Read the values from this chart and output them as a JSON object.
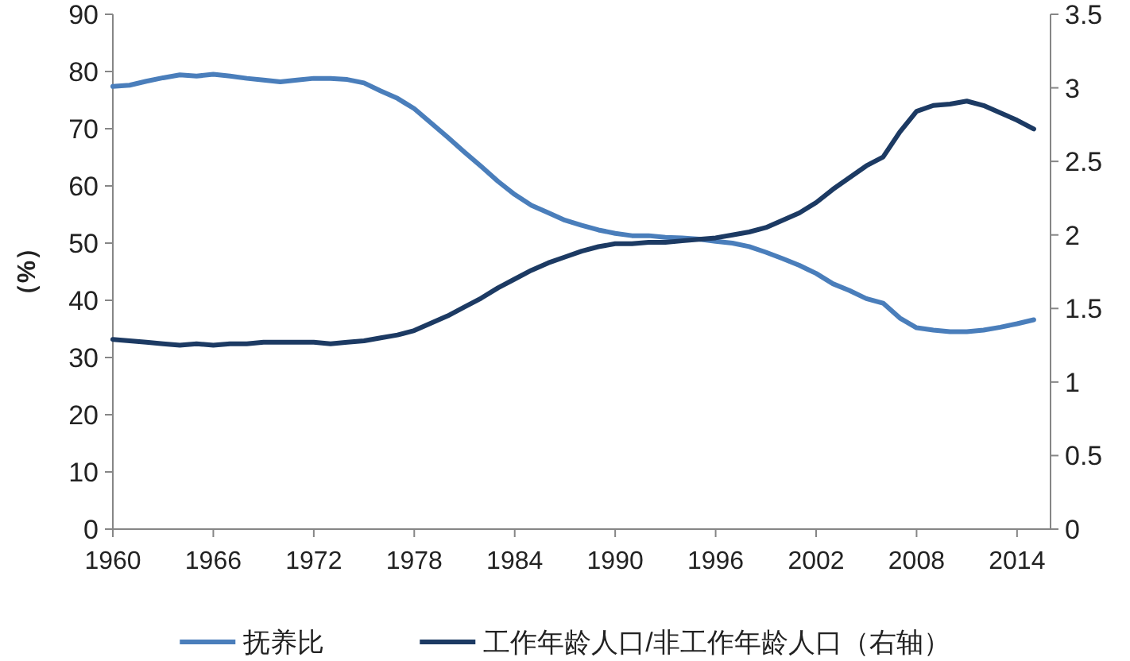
{
  "chart_data": {
    "type": "line",
    "ylabel": "（%）",
    "x": [
      1960,
      1961,
      1962,
      1963,
      1964,
      1965,
      1966,
      1967,
      1968,
      1969,
      1970,
      1971,
      1972,
      1973,
      1974,
      1975,
      1976,
      1977,
      1978,
      1979,
      1980,
      1981,
      1982,
      1983,
      1984,
      1985,
      1986,
      1987,
      1988,
      1989,
      1990,
      1991,
      1992,
      1993,
      1994,
      1995,
      1996,
      1997,
      1998,
      1999,
      2000,
      2001,
      2002,
      2003,
      2004,
      2005,
      2006,
      2007,
      2008,
      2009,
      2010,
      2011,
      2012,
      2013,
      2014,
      2015
    ],
    "xlim": [
      1960,
      2016
    ],
    "xticks": [
      1960,
      1966,
      1972,
      1978,
      1984,
      1990,
      1996,
      2002,
      2008,
      2014
    ],
    "ylim": [
      0,
      90
    ],
    "yticks": [
      0,
      10,
      20,
      30,
      40,
      50,
      60,
      70,
      80,
      90
    ],
    "y2lim": [
      0,
      3.5
    ],
    "y2ticks": [
      0,
      0.5,
      1,
      1.5,
      2,
      2.5,
      3,
      3.5
    ],
    "legend": "bottom",
    "grid": false,
    "series": [
      {
        "name": "抚养比",
        "color": "#4a7ebb",
        "values": [
          77.4,
          77.6,
          78.3,
          78.9,
          79.4,
          79.2,
          79.5,
          79.2,
          78.8,
          78.5,
          78.2,
          78.5,
          78.8,
          78.8,
          78.6,
          78.0,
          76.6,
          75.3,
          73.5,
          71.0,
          68.5,
          65.9,
          63.4,
          60.8,
          58.5,
          56.6,
          55.3,
          54.0,
          53.1,
          52.3,
          51.7,
          51.3,
          51.3,
          51.0,
          50.9,
          50.7,
          50.3,
          50.0,
          49.4,
          48.4,
          47.3,
          46.1,
          44.7,
          42.9,
          41.7,
          40.3,
          39.5,
          36.9,
          35.2,
          34.8,
          34.5,
          34.5,
          34.8,
          35.3,
          35.9,
          36.6
        ]
      },
      {
        "name": "工作年龄人口/非工作年龄人口（右轴）",
        "color": "#1c3a63",
        "axis": "y2",
        "values": [
          1.29,
          1.28,
          1.27,
          1.26,
          1.25,
          1.26,
          1.25,
          1.26,
          1.26,
          1.27,
          1.27,
          1.27,
          1.27,
          1.26,
          1.27,
          1.28,
          1.3,
          1.32,
          1.35,
          1.4,
          1.45,
          1.51,
          1.57,
          1.64,
          1.7,
          1.76,
          1.81,
          1.85,
          1.89,
          1.92,
          1.94,
          1.94,
          1.95,
          1.95,
          1.96,
          1.97,
          1.98,
          2.0,
          2.02,
          2.05,
          2.1,
          2.15,
          2.22,
          2.31,
          2.39,
          2.47,
          2.53,
          2.7,
          2.84,
          2.88,
          2.89,
          2.91,
          2.88,
          2.83,
          2.78,
          2.72
        ]
      }
    ]
  }
}
